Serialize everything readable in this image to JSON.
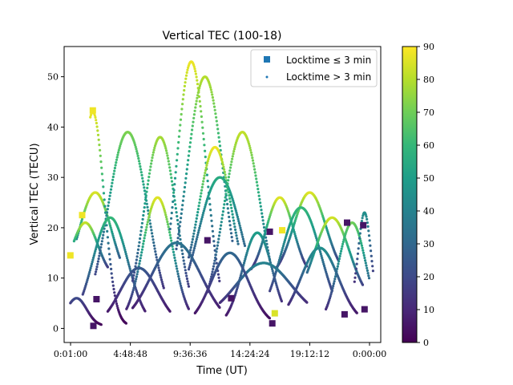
{
  "chart_data": {
    "type": "scatter",
    "title": "Vertical TEC (100-18)",
    "xlabel": "Time (UT)",
    "ylabel": "Vertical TEC (TECU)",
    "x_ticks": [
      "0:01:00",
      "4:48:48",
      "9:36:36",
      "14:24:24",
      "19:12:12",
      "0:00:00"
    ],
    "x_tick_hours": [
      0.0167,
      4.8133,
      9.61,
      14.4067,
      19.2033,
      24.0
    ],
    "xlim_hours": [
      -0.5,
      24.9
    ],
    "ylim": [
      -2.8,
      56
    ],
    "y_ticks": [
      0,
      10,
      20,
      30,
      40,
      50
    ],
    "grid": false,
    "legend_position": "upper-right",
    "legend": [
      {
        "label": "Locktime ≤ 3 min",
        "marker": "square"
      },
      {
        "label": "Locktime > 3 min",
        "marker": "dot"
      }
    ],
    "colorbar": {
      "colormap": "viridis",
      "range": [
        0,
        90
      ],
      "ticks": [
        0,
        10,
        20,
        30,
        40,
        50,
        60,
        70,
        80,
        90
      ]
    },
    "colormap_stops": [
      "#440154",
      "#482878",
      "#3e4a89",
      "#31688e",
      "#26828e",
      "#1f9e89",
      "#35b779",
      "#6ece58",
      "#b5de2b",
      "#fde725"
    ],
    "series": [
      {
        "peak_time": 2.0,
        "peak_tec": 27,
        "width": 1.3,
        "base": 8,
        "start": 0.5,
        "end": 4.0,
        "elev_peak": 85
      },
      {
        "peak_time": 1.2,
        "peak_tec": 21,
        "width": 1.0,
        "base": 10,
        "start": 0.3,
        "end": 3.0,
        "elev_peak": 82
      },
      {
        "peak_time": 1.8,
        "peak_tec": 43,
        "width": 0.9,
        "base": 0.5,
        "start": 1.6,
        "end": 4.5,
        "elev_peak": 88
      },
      {
        "peak_time": 4.6,
        "peak_tec": 39,
        "width": 1.6,
        "base": 0.5,
        "start": 2.0,
        "end": 7.5,
        "elev_peak": 72
      },
      {
        "peak_time": 3.2,
        "peak_tec": 22,
        "width": 1.4,
        "base": 0.5,
        "start": 1.0,
        "end": 6.0,
        "elev_peak": 60
      },
      {
        "peak_time": 7.2,
        "peak_tec": 38,
        "width": 1.3,
        "base": 0.5,
        "start": 5.0,
        "end": 9.5,
        "elev_peak": 78
      },
      {
        "peak_time": 7.0,
        "peak_tec": 26,
        "width": 1.2,
        "base": 1,
        "start": 4.5,
        "end": 9.5,
        "elev_peak": 86
      },
      {
        "peak_time": 9.7,
        "peak_tec": 53,
        "width": 1.2,
        "base": 0.5,
        "start": 8.0,
        "end": 12.0,
        "elev_peak": 88
      },
      {
        "peak_time": 10.8,
        "peak_tec": 50,
        "width": 1.5,
        "base": 0.5,
        "start": 8.5,
        "end": 13.0,
        "elev_peak": 80
      },
      {
        "peak_time": 11.6,
        "peak_tec": 36,
        "width": 1.3,
        "base": 6,
        "start": 9.5,
        "end": 13.5,
        "elev_peak": 88
      },
      {
        "peak_time": 12.0,
        "peak_tec": 30,
        "width": 1.8,
        "base": 0.5,
        "start": 9.5,
        "end": 14.0,
        "elev_peak": 55
      },
      {
        "peak_time": 13.8,
        "peak_tec": 39,
        "width": 1.5,
        "base": 0.5,
        "start": 11.0,
        "end": 16.0,
        "elev_peak": 82
      },
      {
        "peak_time": 15.0,
        "peak_tec": 19,
        "width": 1.2,
        "base": 0.5,
        "start": 12.5,
        "end": 17.0,
        "elev_peak": 50
      },
      {
        "peak_time": 16.8,
        "peak_tec": 26,
        "width": 1.1,
        "base": 10,
        "start": 14.5,
        "end": 19.0,
        "elev_peak": 86
      },
      {
        "peak_time": 19.2,
        "peak_tec": 27,
        "width": 1.3,
        "base": 10,
        "start": 16.5,
        "end": 21.5,
        "elev_peak": 86
      },
      {
        "peak_time": 18.5,
        "peak_tec": 24,
        "width": 1.6,
        "base": 0.5,
        "start": 16.0,
        "end": 21.0,
        "elev_peak": 60
      },
      {
        "peak_time": 21.0,
        "peak_tec": 22,
        "width": 1.4,
        "base": 5,
        "start": 19.0,
        "end": 23.5,
        "elev_peak": 84
      },
      {
        "peak_time": 22.6,
        "peak_tec": 21,
        "width": 1.1,
        "base": 0.5,
        "start": 20.5,
        "end": 24.0,
        "elev_peak": 70
      },
      {
        "peak_time": 23.6,
        "peak_tec": 23,
        "width": 0.5,
        "base": 4,
        "start": 22.8,
        "end": 24.3,
        "elev_peak": 45
      },
      {
        "peak_time": 8.5,
        "peak_tec": 17,
        "width": 2.0,
        "base": 0.5,
        "start": 5.0,
        "end": 12.0,
        "elev_peak": 35
      },
      {
        "peak_time": 5.5,
        "peak_tec": 12,
        "width": 1.5,
        "base": 0.5,
        "start": 3.0,
        "end": 8.0,
        "elev_peak": 25
      },
      {
        "peak_time": 15.5,
        "peak_tec": 13,
        "width": 2.2,
        "base": 2,
        "start": 12.0,
        "end": 19.0,
        "elev_peak": 40
      },
      {
        "peak_time": 20.0,
        "peak_tec": 16,
        "width": 1.5,
        "base": 1,
        "start": 17.5,
        "end": 23.0,
        "elev_peak": 45
      },
      {
        "peak_time": 12.8,
        "peak_tec": 15,
        "width": 1.5,
        "base": 0.5,
        "start": 10.0,
        "end": 16.0,
        "elev_peak": 30
      },
      {
        "peak_time": 0.5,
        "peak_tec": 6,
        "width": 0.8,
        "base": 0.5,
        "start": 0.0,
        "end": 2.5,
        "elev_peak": 20
      }
    ],
    "lock_markers": [
      [
        0.0,
        14.5,
        88
      ],
      [
        0.95,
        22.5,
        88
      ],
      [
        1.8,
        43.3,
        88
      ],
      [
        1.85,
        0.5,
        5
      ],
      [
        2.1,
        5.8,
        5
      ],
      [
        11.0,
        17.5,
        5
      ],
      [
        12.9,
        6.0,
        5
      ],
      [
        16.0,
        19.2,
        5
      ],
      [
        16.2,
        1.0,
        5
      ],
      [
        16.4,
        3.0,
        85
      ],
      [
        17.0,
        19.5,
        88
      ],
      [
        22.2,
        21.0,
        5
      ],
      [
        22.0,
        2.8,
        5
      ],
      [
        23.5,
        20.5,
        5
      ],
      [
        23.6,
        3.8,
        5
      ]
    ]
  }
}
